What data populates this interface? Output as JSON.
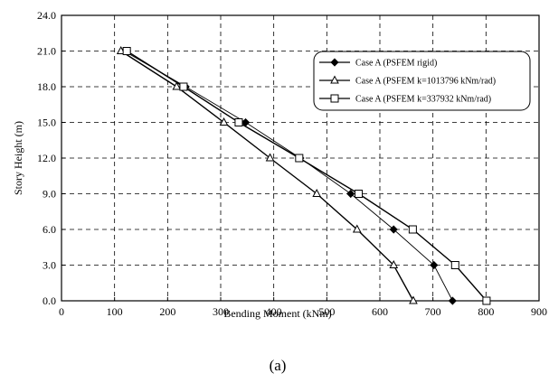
{
  "chart_data": {
    "type": "line",
    "xlabel": "Bending Moment (kNm)",
    "ylabel": "Story Height (m)",
    "caption": "(a)",
    "xlim": [
      0,
      900
    ],
    "ylim": [
      0,
      24
    ],
    "x_ticks": [
      0,
      100,
      200,
      300,
      400,
      500,
      600,
      700,
      800,
      900
    ],
    "y_ticks": [
      0,
      3,
      6,
      9,
      12,
      15,
      18,
      21,
      24
    ],
    "x_tick_labels": [
      "0",
      "100",
      "200",
      "300",
      "400",
      "500",
      "600",
      "700",
      "800",
      "900"
    ],
    "y_tick_labels": [
      "0.0",
      "3.0",
      "6.0",
      "9.0",
      "12.0",
      "15.0",
      "18.0",
      "21.0",
      "24.0"
    ],
    "grid": true,
    "legend_position": "top-right",
    "series": [
      {
        "name": "Case A (PSFEM rigid)",
        "marker": "diamond",
        "points": [
          {
            "x": 737,
            "y": 0
          },
          {
            "x": 702,
            "y": 3
          },
          {
            "x": 626,
            "y": 6
          },
          {
            "x": 545,
            "y": 9
          },
          {
            "x": 450,
            "y": 12
          },
          {
            "x": 347,
            "y": 15
          },
          {
            "x": 234,
            "y": 18
          },
          {
            "x": 118,
            "y": 21
          }
        ]
      },
      {
        "name": "Case A (PSFEM k=1013796 kNm/rad)",
        "marker": "triangle",
        "points": [
          {
            "x": 663,
            "y": 0
          },
          {
            "x": 626,
            "y": 3
          },
          {
            "x": 557,
            "y": 6
          },
          {
            "x": 481,
            "y": 9
          },
          {
            "x": 393,
            "y": 12
          },
          {
            "x": 306,
            "y": 15
          },
          {
            "x": 217,
            "y": 18
          },
          {
            "x": 112,
            "y": 21
          }
        ]
      },
      {
        "name": "Case A (PSFEM k=337932 kNm/rad)",
        "marker": "square",
        "points": [
          {
            "x": 801,
            "y": 0
          },
          {
            "x": 742,
            "y": 3
          },
          {
            "x": 662,
            "y": 6
          },
          {
            "x": 560,
            "y": 9
          },
          {
            "x": 448,
            "y": 12
          },
          {
            "x": 334,
            "y": 15
          },
          {
            "x": 230,
            "y": 18
          },
          {
            "x": 123,
            "y": 21
          }
        ]
      }
    ]
  }
}
